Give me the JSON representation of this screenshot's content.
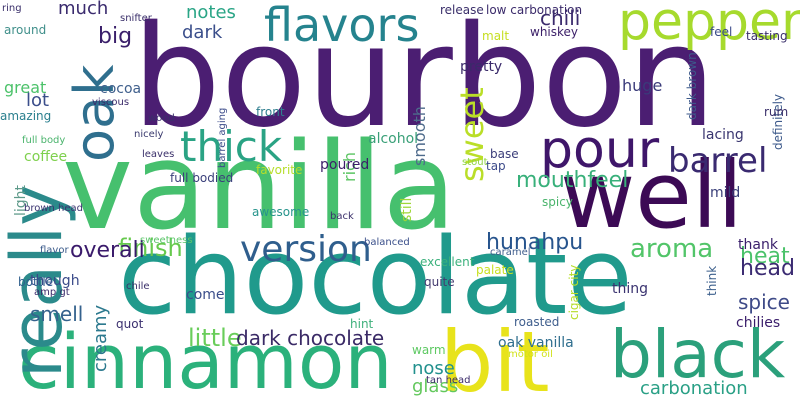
{
  "words": [
    {
      "text": "bourbon",
      "color": "#4b1e72"
    },
    {
      "text": "vanilla",
      "color": "#46c06e"
    },
    {
      "text": "chocolate",
      "color": "#209a8c"
    },
    {
      "text": "well",
      "color": "#3c0a55"
    },
    {
      "text": "cinnamon",
      "color": "#2bb17b"
    },
    {
      "text": "bit",
      "color": "#e8e31b"
    },
    {
      "text": "really",
      "color": "#2b8a8b"
    },
    {
      "text": "black",
      "color": "#2ba07b"
    },
    {
      "text": "pour",
      "color": "#3f166a"
    },
    {
      "text": "flavors",
      "color": "#25838e"
    },
    {
      "text": "pepper",
      "color": "#a6da2d"
    },
    {
      "text": "oak",
      "color": "#2f6f8e"
    },
    {
      "text": "thick",
      "color": "#2aa384"
    },
    {
      "text": "barrel",
      "color": "#3a2a70"
    },
    {
      "text": "version",
      "color": "#2f5e8d"
    },
    {
      "text": "sweet",
      "color": "#bade28"
    },
    {
      "text": "finish",
      "color": "#66c94d"
    },
    {
      "text": "hunahpu",
      "color": "#27548d"
    },
    {
      "text": "aroma",
      "color": "#52c569"
    },
    {
      "text": "mouthfeel",
      "color": "#38b07a"
    },
    {
      "text": "heat",
      "color": "#4ac26a"
    },
    {
      "text": "head",
      "color": "#3b2b72"
    },
    {
      "text": "spice",
      "color": "#3e4a88"
    },
    {
      "text": "little",
      "color": "#69cd5a"
    },
    {
      "text": "overall",
      "color": "#3a1a6b"
    },
    {
      "text": "smell",
      "color": "#35628d"
    },
    {
      "text": "dark chocolate",
      "color": "#3a2a66"
    },
    {
      "text": "creamy",
      "color": "#2c798e"
    },
    {
      "text": "nose",
      "color": "#21908d"
    },
    {
      "text": "carbonation",
      "color": "#2aa086"
    },
    {
      "text": "chilies",
      "color": "#3a1d6b"
    },
    {
      "text": "oak vanilla",
      "color": "#2f6e8e"
    },
    {
      "text": "glass",
      "color": "#63c85d"
    },
    {
      "text": "notes",
      "color": "#2aa586"
    },
    {
      "text": "dark",
      "color": "#3b4f8b"
    },
    {
      "text": "chili",
      "color": "#3a2a6c"
    },
    {
      "text": "big",
      "color": "#3a1f6a"
    },
    {
      "text": "much",
      "color": "#3a2b6e"
    },
    {
      "text": "great",
      "color": "#4cc26a"
    },
    {
      "text": "lot",
      "color": "#3b4e8b"
    },
    {
      "text": "cocoa",
      "color": "#3f5f8c"
    },
    {
      "text": "huge",
      "color": "#3a3b7a"
    },
    {
      "text": "smooth",
      "color": "#4d6a8b"
    },
    {
      "text": "alcohol",
      "color": "#3aa078"
    },
    {
      "text": "rich",
      "color": "#5cc563"
    },
    {
      "text": "poured",
      "color": "#3b1f68"
    },
    {
      "text": "coffee",
      "color": "#7ed04d"
    },
    {
      "text": "full bodied",
      "color": "#3a3f7a"
    },
    {
      "text": "favorite",
      "color": "#b6de2a"
    },
    {
      "text": "light",
      "color": "#5e9a8a"
    },
    {
      "text": "brown head",
      "color": "#3a3470"
    },
    {
      "text": "awesome",
      "color": "#27948c"
    },
    {
      "text": "quite",
      "color": "#443b70"
    },
    {
      "text": "come",
      "color": "#3a4d8a"
    },
    {
      "text": "thank",
      "color": "#3a1f6b"
    },
    {
      "text": "mild",
      "color": "#3a3f79"
    },
    {
      "text": "lacing",
      "color": "#3a3670"
    },
    {
      "text": "dark brown",
      "color": "#3d5a8b"
    },
    {
      "text": "definitely",
      "color": "#3d5a8b"
    },
    {
      "text": "pretty",
      "color": "#3a2a6a"
    },
    {
      "text": "whiskey",
      "color": "#3b1f68"
    },
    {
      "text": "base",
      "color": "#3a3d79"
    },
    {
      "text": "spicy",
      "color": "#4ab46c"
    },
    {
      "text": "tap",
      "color": "#3c4a8a"
    },
    {
      "text": "still",
      "color": "#9fd738"
    },
    {
      "text": "stout",
      "color": "#8ed43f"
    },
    {
      "text": "though",
      "color": "#3a4a89"
    },
    {
      "text": "quot",
      "color": "#3a2f6e"
    },
    {
      "text": "bottle",
      "color": "#2f5f8d"
    },
    {
      "text": "hint",
      "color": "#3fb07b"
    },
    {
      "text": "amp gt",
      "color": "#3a2a6a"
    },
    {
      "text": "excellent",
      "color": "#3bb17c"
    },
    {
      "text": "sweetness",
      "color": "#5cc66a"
    },
    {
      "text": "viscous",
      "color": "#3a2a6a"
    },
    {
      "text": "amazing",
      "color": "#2a7f8e"
    },
    {
      "text": "wood",
      "color": "#3a2f6a"
    },
    {
      "text": "front",
      "color": "#2e7e8e"
    },
    {
      "text": "leaves",
      "color": "#3a2f6a"
    },
    {
      "text": "nicely",
      "color": "#3a3a6e"
    },
    {
      "text": "barrel aging",
      "color": "#3a4a89"
    },
    {
      "text": "balanced",
      "color": "#3a4f8a"
    },
    {
      "text": "back",
      "color": "#3a2f6a"
    },
    {
      "text": "palate",
      "color": "#c7e020"
    },
    {
      "text": "cigar city",
      "color": "#b7dd29"
    },
    {
      "text": "thing",
      "color": "#3a3370"
    },
    {
      "text": "think",
      "color": "#3c5f8c"
    },
    {
      "text": "roasted",
      "color": "#3f5e8d"
    },
    {
      "text": "warm",
      "color": "#5ec963"
    },
    {
      "text": "motor oil",
      "color": "#d1e21b"
    },
    {
      "text": "caramel",
      "color": "#3f5e8d"
    },
    {
      "text": "release",
      "color": "#3a2f6a"
    },
    {
      "text": "low carbonation",
      "color": "#3a2a6a"
    },
    {
      "text": "flavor",
      "color": "#3a5a8a"
    },
    {
      "text": "full body",
      "color": "#4bb46d"
    },
    {
      "text": "tan head",
      "color": "#3a2a6a"
    },
    {
      "text": "snifter",
      "color": "#3a2f6a"
    },
    {
      "text": "around",
      "color": "#3f8f8a"
    },
    {
      "text": "ring",
      "color": "#3a2f6a"
    },
    {
      "text": "chile",
      "color": "#3a2f6a"
    },
    {
      "text": "rum",
      "color": "#3a2f6a"
    },
    {
      "text": "tasting",
      "color": "#3a2f6a"
    },
    {
      "text": "feel",
      "color": "#3a4a89"
    },
    {
      "text": "malt",
      "color": "#c6de20"
    }
  ]
}
